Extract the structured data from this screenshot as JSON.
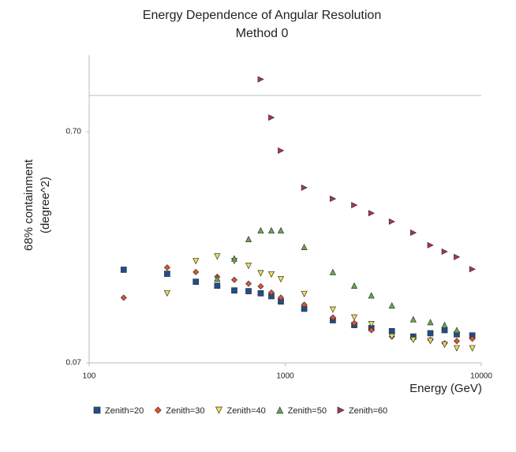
{
  "chart_data": {
    "type": "scatter",
    "title": [
      "Energy Dependence of Angular Resolution",
      "Method 0"
    ],
    "xlabel": "Energy (GeV)",
    "ylabel": [
      "68% containment",
      "(degree^2)"
    ],
    "xlog": true,
    "ylog": true,
    "xlim": [
      100,
      10000
    ],
    "xticks": [
      100,
      1000,
      10000
    ],
    "ylim": [
      0.07,
      1.5
    ],
    "yticks": [
      0.07,
      {
        "value": 0.7,
        "label": "0.70"
      }
    ],
    "x": [
      150,
      250,
      350,
      450,
      550,
      650,
      750,
      850,
      950,
      1250,
      1750,
      2250,
      2750,
      3500,
      4500,
      5500,
      6500,
      7500,
      9000
    ],
    "legend": "bottom",
    "series": [
      {
        "name": "Zenith=20",
        "color": "#1f4e8c",
        "marker": "square",
        "values": [
          0.177,
          0.17,
          0.157,
          0.151,
          0.144,
          0.143,
          0.14,
          0.136,
          0.129,
          0.12,
          0.107,
          0.102,
          0.099,
          0.096,
          0.091,
          0.094,
          0.097,
          0.093,
          0.092
        ]
      },
      {
        "name": "Zenith=30",
        "color": "#e8502c",
        "marker": "diamond",
        "values": [
          0.134,
          0.181,
          0.173,
          0.165,
          0.16,
          0.154,
          0.15,
          0.141,
          0.134,
          0.125,
          0.11,
          0.104,
          0.097,
          0.091,
          0.089,
          0.088,
          0.085,
          0.087,
          0.089
        ]
      },
      {
        "name": "Zenith=40",
        "color": "#f0e050",
        "marker": "triangle-down",
        "values": [
          null,
          0.14,
          0.193,
          0.202,
          0.193,
          0.184,
          0.171,
          0.169,
          0.161,
          0.139,
          0.119,
          0.11,
          0.103,
          0.091,
          0.088,
          0.087,
          0.084,
          0.081,
          0.081
        ]
      },
      {
        "name": "Zenith=50",
        "color": "#6aa84f",
        "marker": "triangle-up",
        "values": [
          null,
          null,
          null,
          0.162,
          0.198,
          0.24,
          0.262,
          0.262,
          0.262,
          0.222,
          0.173,
          0.151,
          0.137,
          0.124,
          0.108,
          0.105,
          0.102,
          0.097,
          null
        ]
      },
      {
        "name": "Zenith=60",
        "color": "#b03060",
        "marker": "triangle-right",
        "values": [
          null,
          null,
          null,
          null,
          null,
          null,
          1.18,
          0.806,
          0.58,
          0.401,
          0.359,
          0.337,
          0.311,
          0.286,
          0.256,
          0.226,
          0.212,
          0.201,
          0.178
        ]
      }
    ]
  }
}
